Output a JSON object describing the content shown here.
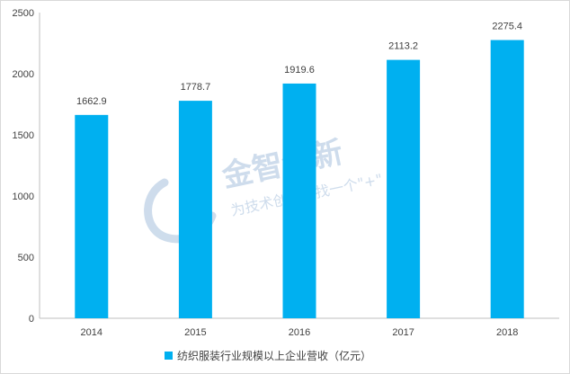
{
  "chart_data": {
    "type": "bar",
    "categories": [
      "2014",
      "2015",
      "2016",
      "2017",
      "2018"
    ],
    "series": [
      {
        "name": "纺织服装行业规模以上企业营收（亿元）",
        "values": [
          1662.9,
          1778.7,
          1919.6,
          2113.2,
          2275.4
        ]
      }
    ],
    "data_labels": [
      "1662.9",
      "1778.7",
      "1919.6",
      "2113.2",
      "2275.4"
    ],
    "yticks": [
      "0",
      "500",
      "1000",
      "1500",
      "2000",
      "2500"
    ],
    "ylim": [
      0,
      2500
    ],
    "grid": false,
    "legend": "bottom",
    "bar_color": "#00b0f0"
  },
  "watermark": {
    "title": "金智创新",
    "subtitle": "为技术创新寻找一个\"+\""
  }
}
